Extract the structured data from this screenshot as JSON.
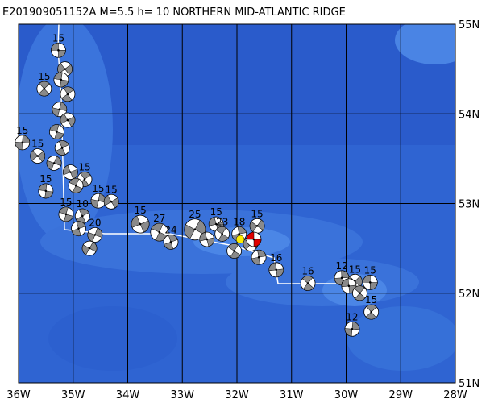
{
  "title": "E201909051152A M=5.5 h= 10 NORTHERN MID-ATLANTIC RIDGE",
  "lon_ticks": [
    {
      "value": -36,
      "label": "36W"
    },
    {
      "value": -35,
      "label": "35W"
    },
    {
      "value": -34,
      "label": "34W"
    },
    {
      "value": -33,
      "label": "33W"
    },
    {
      "value": -32,
      "label": "32W"
    },
    {
      "value": -31,
      "label": "31W"
    },
    {
      "value": -30,
      "label": "30W"
    },
    {
      "value": -29,
      "label": "29W"
    },
    {
      "value": -28,
      "label": "28W"
    }
  ],
  "lat_ticks": [
    {
      "value": 55,
      "label": "55N"
    },
    {
      "value": 54,
      "label": "54N"
    },
    {
      "value": 53,
      "label": "53N"
    },
    {
      "value": 52,
      "label": "52N"
    },
    {
      "value": 51,
      "label": "51N"
    }
  ],
  "lonlim": [
    -36,
    -28
  ],
  "latlim": [
    51,
    55
  ],
  "events": [
    {
      "label": "15",
      "lon": -35.27,
      "lat": 54.71
    },
    {
      "label": "15",
      "lon": -35.53,
      "lat": 54.28
    },
    {
      "label": "15",
      "lon": -35.93,
      "lat": 53.68
    },
    {
      "label": "15",
      "lon": -35.65,
      "lat": 53.53
    },
    {
      "label": "15",
      "lon": -35.5,
      "lat": 53.14
    },
    {
      "label": "15",
      "lon": -34.79,
      "lat": 53.27
    },
    {
      "label": "15",
      "lon": -34.54,
      "lat": 53.03
    },
    {
      "label": "15",
      "lon": -34.3,
      "lat": 53.02
    },
    {
      "label": "15",
      "lon": -35.13,
      "lat": 52.88
    },
    {
      "label": "10",
      "lon": -34.83,
      "lat": 52.86
    },
    {
      "label": "20",
      "lon": -34.6,
      "lat": 52.65
    },
    {
      "label": "15",
      "lon": -33.77,
      "lat": 52.77
    },
    {
      "label": "27",
      "lon": -33.42,
      "lat": 52.68
    },
    {
      "label": "24",
      "lon": -33.21,
      "lat": 52.57
    },
    {
      "label": "25",
      "lon": -32.77,
      "lat": 52.71
    },
    {
      "label": "15",
      "lon": -32.38,
      "lat": 52.77
    },
    {
      "label": "23",
      "lon": -32.27,
      "lat": 52.66
    },
    {
      "label": "18",
      "lon": -31.96,
      "lat": 52.66
    },
    {
      "label": "15",
      "lon": -31.63,
      "lat": 52.75
    },
    {
      "label": "16",
      "lon": -31.28,
      "lat": 52.26
    },
    {
      "label": "16",
      "lon": -30.7,
      "lat": 52.11
    },
    {
      "label": "12",
      "lon": -30.08,
      "lat": 52.17
    },
    {
      "label": "15",
      "lon": -29.84,
      "lat": 52.13
    },
    {
      "label": "15",
      "lon": -29.56,
      "lat": 52.12
    },
    {
      "label": "15",
      "lon": -29.54,
      "lat": 51.79
    },
    {
      "label": "12",
      "lon": -29.89,
      "lat": 51.6
    },
    {
      "label": null,
      "lon": -35.15,
      "lat": 54.5
    },
    {
      "label": null,
      "lon": -35.22,
      "lat": 54.38
    },
    {
      "label": null,
      "lon": -35.1,
      "lat": 54.22
    },
    {
      "label": null,
      "lon": -35.25,
      "lat": 54.05
    },
    {
      "label": null,
      "lon": -35.1,
      "lat": 53.93
    },
    {
      "label": null,
      "lon": -35.3,
      "lat": 53.8
    },
    {
      "label": null,
      "lon": -35.2,
      "lat": 53.62
    },
    {
      "label": null,
      "lon": -35.35,
      "lat": 53.45
    },
    {
      "label": null,
      "lon": -35.05,
      "lat": 53.35
    },
    {
      "label": null,
      "lon": -34.95,
      "lat": 53.2
    },
    {
      "label": null,
      "lon": -34.9,
      "lat": 52.72
    },
    {
      "label": null,
      "lon": -34.7,
      "lat": 52.5
    },
    {
      "label": null,
      "lon": -32.55,
      "lat": 52.6
    },
    {
      "label": null,
      "lon": -32.05,
      "lat": 52.47
    },
    {
      "label": null,
      "lon": -31.6,
      "lat": 52.4
    },
    {
      "label": null,
      "lon": -31.75,
      "lat": 52.55
    },
    {
      "label": null,
      "lon": -29.95,
      "lat": 52.08
    },
    {
      "label": null,
      "lon": -29.75,
      "lat": 52.0
    }
  ],
  "epicenter": {
    "lon": -31.94,
    "lat": 52.6
  },
  "main_event": {
    "lon": -31.69,
    "lat": 52.6
  }
}
